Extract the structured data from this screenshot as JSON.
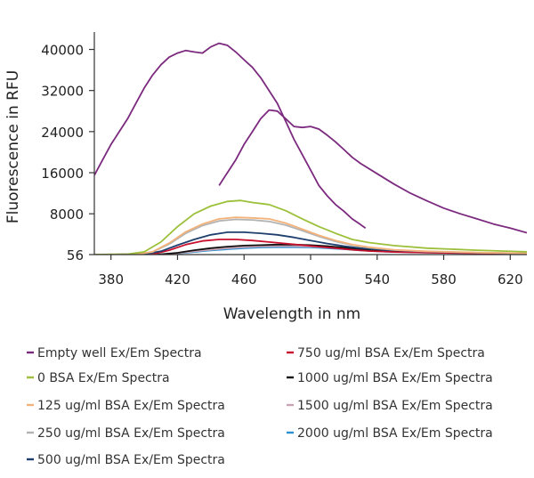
{
  "chart_data": {
    "type": "line",
    "title": "",
    "xlabel": "Wavelength in nm",
    "ylabel": "Fluorescence in RFU",
    "xlim": [
      370,
      630
    ],
    "ylim": [
      56,
      42000
    ],
    "xticks": [
      380,
      420,
      460,
      500,
      540,
      580,
      620
    ],
    "yticks": [
      56,
      8000,
      16000,
      24000,
      32000,
      40000
    ],
    "ytick_labels": [
      "56",
      "8000",
      "16000",
      "24000",
      "32000",
      "40000"
    ],
    "grid": false,
    "legend_position": "bottom",
    "series": [
      {
        "name": "Empty well Ex/Em Spectra",
        "color": "#7b2a7e",
        "segments": [
          [
            [
              370,
              15500
            ],
            [
              375,
              18500
            ],
            [
              380,
              21500
            ],
            [
              385,
              24000
            ],
            [
              390,
              26500
            ],
            [
              395,
              29500
            ],
            [
              400,
              32500
            ],
            [
              405,
              35000
            ],
            [
              410,
              37000
            ],
            [
              415,
              38500
            ],
            [
              420,
              39300
            ],
            [
              425,
              39800
            ],
            [
              430,
              39500
            ],
            [
              435,
              39300
            ],
            [
              440,
              40500
            ],
            [
              445,
              41200
            ],
            [
              450,
              40800
            ],
            [
              455,
              39500
            ],
            [
              460,
              38000
            ],
            [
              465,
              36500
            ],
            [
              470,
              34500
            ],
            [
              475,
              32000
            ],
            [
              480,
              29500
            ],
            [
              485,
              26000
            ],
            [
              490,
              22500
            ],
            [
              495,
              19500
            ],
            [
              500,
              16500
            ],
            [
              505,
              13500
            ],
            [
              510,
              11500
            ],
            [
              515,
              9800
            ],
            [
              520,
              8500
            ],
            [
              525,
              7000
            ],
            [
              530,
              5900
            ],
            [
              533,
              5200
            ]
          ],
          [
            [
              445,
              13500
            ],
            [
              450,
              16000
            ],
            [
              455,
              18500
            ],
            [
              460,
              21500
            ],
            [
              465,
              24000
            ],
            [
              470,
              26500
            ],
            [
              475,
              28200
            ],
            [
              480,
              28000
            ],
            [
              485,
              26500
            ],
            [
              490,
              25000
            ],
            [
              495,
              24800
            ],
            [
              500,
              25000
            ],
            [
              505,
              24500
            ],
            [
              510,
              23300
            ],
            [
              515,
              22000
            ],
            [
              520,
              20500
            ],
            [
              525,
              19000
            ],
            [
              530,
              17800
            ],
            [
              540,
              15800
            ],
            [
              550,
              13800
            ],
            [
              560,
              12000
            ],
            [
              570,
              10500
            ],
            [
              580,
              9100
            ],
            [
              590,
              8000
            ],
            [
              600,
              7000
            ],
            [
              610,
              6000
            ],
            [
              620,
              5200
            ],
            [
              630,
              4300
            ]
          ]
        ]
      },
      {
        "name": "0 BSA Ex/Em Spectra",
        "color": "#9cc03a",
        "segments": [
          [
            [
              370,
              56
            ],
            [
              390,
              150
            ],
            [
              400,
              600
            ],
            [
              410,
              2500
            ],
            [
              420,
              5500
            ],
            [
              430,
              8000
            ],
            [
              440,
              9500
            ],
            [
              450,
              10400
            ],
            [
              458,
              10600
            ],
            [
              465,
              10200
            ],
            [
              475,
              9800
            ],
            [
              485,
              8600
            ],
            [
              495,
              7000
            ],
            [
              505,
              5500
            ],
            [
              515,
              4200
            ],
            [
              525,
              3000
            ],
            [
              535,
              2400
            ],
            [
              550,
              1800
            ],
            [
              570,
              1300
            ],
            [
              600,
              900
            ],
            [
              630,
              600
            ]
          ]
        ]
      },
      {
        "name": "125 ug/ml BSA Ex/Em Spectra",
        "color": "#f2b27a",
        "segments": [
          [
            [
              370,
              56
            ],
            [
              395,
              100
            ],
            [
              405,
              600
            ],
            [
              415,
              2300
            ],
            [
              425,
              4500
            ],
            [
              435,
              6000
            ],
            [
              445,
              7000
            ],
            [
              455,
              7300
            ],
            [
              465,
              7200
            ],
            [
              475,
              7000
            ],
            [
              485,
              6200
            ],
            [
              495,
              5000
            ],
            [
              505,
              3800
            ],
            [
              515,
              2800
            ],
            [
              525,
              2000
            ],
            [
              535,
              1500
            ],
            [
              550,
              1000
            ],
            [
              570,
              700
            ],
            [
              600,
              450
            ],
            [
              630,
              300
            ]
          ]
        ]
      },
      {
        "name": "250 ug/ml BSA Ex/Em Spectra",
        "color": "#b3b3b3",
        "segments": [
          [
            [
              370,
              56
            ],
            [
              395,
              100
            ],
            [
              405,
              550
            ],
            [
              415,
              2100
            ],
            [
              425,
              4200
            ],
            [
              435,
              5700
            ],
            [
              445,
              6600
            ],
            [
              455,
              6900
            ],
            [
              465,
              6800
            ],
            [
              475,
              6500
            ],
            [
              485,
              5800
            ],
            [
              495,
              4700
            ],
            [
              505,
              3600
            ],
            [
              515,
              2600
            ],
            [
              525,
              1900
            ],
            [
              535,
              1400
            ],
            [
              550,
              950
            ],
            [
              570,
              650
            ],
            [
              600,
              420
            ],
            [
              630,
              280
            ]
          ]
        ]
      },
      {
        "name": "500 ug/ml BSA Ex/Em Spectra",
        "color": "#1e3f6e",
        "segments": [
          [
            [
              370,
              56
            ],
            [
              400,
              120
            ],
            [
              410,
              700
            ],
            [
              420,
              1900
            ],
            [
              430,
              3000
            ],
            [
              440,
              3900
            ],
            [
              450,
              4400
            ],
            [
              460,
              4400
            ],
            [
              470,
              4200
            ],
            [
              480,
              3900
            ],
            [
              490,
              3400
            ],
            [
              500,
              2800
            ],
            [
              510,
              2200
            ],
            [
              520,
              1700
            ],
            [
              530,
              1300
            ],
            [
              545,
              950
            ],
            [
              570,
              650
            ],
            [
              600,
              420
            ],
            [
              630,
              280
            ]
          ]
        ]
      },
      {
        "name": "750 ug/ml BSA Ex/Em Spectra",
        "color": "#c8102e",
        "segments": [
          [
            [
              370,
              56
            ],
            [
              405,
              100
            ],
            [
              415,
              900
            ],
            [
              425,
              2000
            ],
            [
              435,
              2700
            ],
            [
              445,
              3000
            ],
            [
              455,
              3000
            ],
            [
              465,
              2800
            ],
            [
              475,
              2500
            ],
            [
              485,
              2200
            ],
            [
              495,
              1900
            ],
            [
              505,
              1600
            ],
            [
              515,
              1300
            ],
            [
              525,
              1000
            ],
            [
              535,
              750
            ],
            [
              550,
              550
            ],
            [
              575,
              400
            ],
            [
              600,
              300
            ],
            [
              630,
              200
            ]
          ]
        ]
      },
      {
        "name": "1000 ug/ml BSA Ex/Em Spectra",
        "color": "#111111",
        "segments": [
          [
            [
              370,
              56
            ],
            [
              410,
              100
            ],
            [
              420,
              400
            ],
            [
              430,
              900
            ],
            [
              440,
              1300
            ],
            [
              450,
              1600
            ],
            [
              460,
              1800
            ],
            [
              470,
              1900
            ],
            [
              480,
              2000
            ],
            [
              490,
              2000
            ],
            [
              500,
              1900
            ],
            [
              510,
              1700
            ],
            [
              520,
              1400
            ],
            [
              530,
              1100
            ],
            [
              545,
              800
            ],
            [
              570,
              550
            ],
            [
              600,
              380
            ],
            [
              630,
              260
            ]
          ]
        ]
      },
      {
        "name": "1500 ug/ml BSA Ex/Em Spectra",
        "color": "#c9a3b4",
        "segments": [
          [
            [
              370,
              56
            ],
            [
              410,
              80
            ],
            [
              420,
              300
            ],
            [
              430,
              700
            ],
            [
              440,
              1000
            ],
            [
              450,
              1300
            ],
            [
              460,
              1500
            ],
            [
              470,
              1650
            ],
            [
              480,
              1700
            ],
            [
              490,
              1700
            ],
            [
              500,
              1600
            ],
            [
              510,
              1450
            ],
            [
              520,
              1200
            ],
            [
              530,
              950
            ],
            [
              545,
              700
            ],
            [
              570,
              480
            ],
            [
              600,
              330
            ],
            [
              630,
              230
            ]
          ]
        ]
      },
      {
        "name": "2000 ug/ml BSA Ex/Em Spectra",
        "color": "#2e8fd1",
        "segments": [
          [
            [
              370,
              56
            ],
            [
              410,
              70
            ],
            [
              420,
              250
            ],
            [
              430,
              550
            ],
            [
              440,
              850
            ],
            [
              450,
              1100
            ],
            [
              460,
              1300
            ],
            [
              470,
              1450
            ],
            [
              480,
              1500
            ],
            [
              490,
              1500
            ],
            [
              500,
              1450
            ],
            [
              510,
              1300
            ],
            [
              520,
              1100
            ],
            [
              530,
              850
            ],
            [
              545,
              620
            ],
            [
              570,
              430
            ],
            [
              600,
              300
            ],
            [
              630,
              210
            ]
          ]
        ]
      }
    ]
  }
}
